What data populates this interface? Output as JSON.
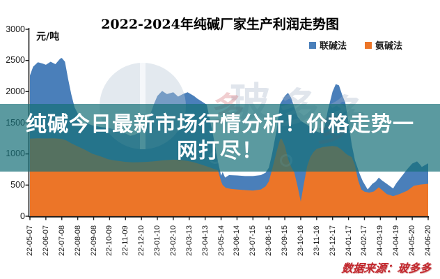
{
  "chart_data": {
    "type": "area",
    "title": "2022-2024年纯碱厂家生产利润走势图",
    "unit_label": "元/吨",
    "xlabel": "",
    "ylabel": "元/吨",
    "ylim": [
      0,
      3000
    ],
    "y_ticks": [
      0,
      500,
      1000,
      1500,
      2000,
      2500,
      3000
    ],
    "grid": false,
    "legend_position": "top-right",
    "categories": [
      "22-05-07",
      "22-06-07",
      "22-07-08",
      "22-08-08",
      "22-09-08",
      "22-10-09",
      "22-11-09",
      "22-12-10",
      "23-01-10",
      "23-02-10",
      "23-03-13",
      "23-04-13",
      "23-05-14",
      "23-06-14",
      "23-07-15",
      "23-08-15",
      "23-09-15",
      "23-10-16",
      "23-11-16",
      "23-12-17",
      "24-01-17",
      "24-02-17",
      "24-03-19",
      "24-04-19",
      "24-05-20",
      "24-06-20"
    ],
    "legend": [
      {
        "name": "联碱法",
        "color": "#4a7fba"
      },
      {
        "name": "氨碱法",
        "color": "#ec7528"
      }
    ],
    "series": [
      {
        "name": "联碱法",
        "color": "#4a7fba",
        "points": [
          [
            0,
            2260
          ],
          [
            0.2,
            2400
          ],
          [
            0.5,
            2470
          ],
          [
            0.8,
            2450
          ],
          [
            1.0,
            2430
          ],
          [
            1.3,
            2480
          ],
          [
            1.6,
            2440
          ],
          [
            1.9,
            2530
          ],
          [
            2.0,
            2540
          ],
          [
            2.2,
            2480
          ],
          [
            2.4,
            2200
          ],
          [
            2.6,
            1950
          ],
          [
            2.8,
            1750
          ],
          [
            3.0,
            1650
          ],
          [
            3.3,
            1420
          ],
          [
            3.5,
            1500
          ],
          [
            3.9,
            1460
          ],
          [
            4.5,
            1430
          ],
          [
            4.9,
            1420
          ],
          [
            5.6,
            1370
          ],
          [
            6.0,
            1330
          ],
          [
            6.3,
            1290
          ],
          [
            6.6,
            1310
          ],
          [
            6.9,
            1350
          ],
          [
            7.3,
            1460
          ],
          [
            7.5,
            1600
          ],
          [
            7.8,
            1810
          ],
          [
            8.0,
            1930
          ],
          [
            8.3,
            2010
          ],
          [
            8.6,
            1960
          ],
          [
            9.0,
            1990
          ],
          [
            9.3,
            1920
          ],
          [
            9.6,
            1960
          ],
          [
            9.9,
            1990
          ],
          [
            10.3,
            1930
          ],
          [
            10.5,
            1890
          ],
          [
            10.8,
            1840
          ],
          [
            11.1,
            1790
          ],
          [
            11.5,
            1300
          ],
          [
            11.8,
            880
          ],
          [
            12.0,
            650
          ],
          [
            12.1,
            710
          ],
          [
            12.25,
            620
          ],
          [
            12.5,
            660
          ],
          [
            13.0,
            655
          ],
          [
            13.5,
            645
          ],
          [
            14.0,
            645
          ],
          [
            14.5,
            660
          ],
          [
            14.8,
            700
          ],
          [
            15.0,
            780
          ],
          [
            15.2,
            1000
          ],
          [
            15.5,
            1400
          ],
          [
            15.7,
            1800
          ],
          [
            16.0,
            1930
          ],
          [
            16.2,
            1980
          ],
          [
            16.4,
            1900
          ],
          [
            16.6,
            1750
          ],
          [
            16.8,
            1600
          ],
          [
            17.0,
            1530
          ],
          [
            17.4,
            1470
          ],
          [
            17.8,
            1390
          ],
          [
            18.0,
            1360
          ],
          [
            18.2,
            1340
          ],
          [
            18.5,
            1420
          ],
          [
            18.7,
            1700
          ],
          [
            19.0,
            2000
          ],
          [
            19.2,
            2120
          ],
          [
            19.4,
            2100
          ],
          [
            19.6,
            1950
          ],
          [
            19.8,
            1820
          ],
          [
            20.0,
            1500
          ],
          [
            20.2,
            1150
          ],
          [
            20.4,
            900
          ],
          [
            20.7,
            680
          ],
          [
            20.9,
            560
          ],
          [
            21.2,
            430
          ],
          [
            21.5,
            520
          ],
          [
            21.7,
            555
          ],
          [
            21.9,
            620
          ],
          [
            22.1,
            575
          ],
          [
            22.4,
            520
          ],
          [
            22.8,
            445
          ],
          [
            23.0,
            530
          ],
          [
            23.4,
            660
          ],
          [
            23.7,
            760
          ],
          [
            24.0,
            845
          ],
          [
            24.3,
            880
          ],
          [
            24.5,
            825
          ],
          [
            24.6,
            790
          ],
          [
            24.8,
            820
          ],
          [
            25,
            850
          ]
        ]
      },
      {
        "name": "氨碱法",
        "color": "#ec7528",
        "points": [
          [
            0,
            1245
          ],
          [
            0.5,
            1250
          ],
          [
            1.0,
            1248
          ],
          [
            1.5,
            1252
          ],
          [
            2.0,
            1240
          ],
          [
            2.3,
            1215
          ],
          [
            2.6,
            1170
          ],
          [
            3.0,
            1120
          ],
          [
            3.5,
            1060
          ],
          [
            3.9,
            1005
          ],
          [
            4.5,
            955
          ],
          [
            4.9,
            915
          ],
          [
            5.3,
            895
          ],
          [
            5.6,
            885
          ],
          [
            6.0,
            872
          ],
          [
            6.5,
            865
          ],
          [
            6.9,
            868
          ],
          [
            7.3,
            872
          ],
          [
            7.8,
            882
          ],
          [
            8.3,
            895
          ],
          [
            9.0,
            908
          ],
          [
            9.5,
            900
          ],
          [
            9.9,
            888
          ],
          [
            10.3,
            865
          ],
          [
            10.8,
            825
          ],
          [
            11.1,
            800
          ],
          [
            11.5,
            765
          ],
          [
            11.8,
            738
          ],
          [
            12.0,
            560
          ],
          [
            12.1,
            500
          ],
          [
            12.3,
            455
          ],
          [
            12.6,
            440
          ],
          [
            13.0,
            430
          ],
          [
            13.5,
            420
          ],
          [
            14.0,
            412
          ],
          [
            14.5,
            430
          ],
          [
            14.8,
            480
          ],
          [
            15.0,
            560
          ],
          [
            15.2,
            750
          ],
          [
            15.5,
            1050
          ],
          [
            15.7,
            1230
          ],
          [
            15.8,
            1245
          ],
          [
            16.0,
            1130
          ],
          [
            16.2,
            920
          ],
          [
            16.4,
            790
          ],
          [
            16.6,
            700
          ],
          [
            16.8,
            480
          ],
          [
            17.0,
            235
          ],
          [
            17.2,
            520
          ],
          [
            17.4,
            800
          ],
          [
            17.6,
            950
          ],
          [
            17.8,
            1030
          ],
          [
            18.0,
            1080
          ],
          [
            18.4,
            1110
          ],
          [
            19.0,
            1128
          ],
          [
            19.3,
            1115
          ],
          [
            19.6,
            1060
          ],
          [
            19.8,
            1010
          ],
          [
            20.0,
            975
          ],
          [
            20.2,
            950
          ],
          [
            20.4,
            820
          ],
          [
            20.6,
            580
          ],
          [
            20.8,
            430
          ],
          [
            21.0,
            395
          ],
          [
            21.3,
            378
          ],
          [
            21.6,
            398
          ],
          [
            21.9,
            465
          ],
          [
            22.4,
            356
          ],
          [
            22.8,
            322
          ],
          [
            23.2,
            355
          ],
          [
            23.7,
            412
          ],
          [
            24.1,
            488
          ],
          [
            24.5,
            508
          ],
          [
            25,
            520
          ]
        ]
      }
    ]
  },
  "overlay": {
    "line1": "纯碱今日最新市场行情分析！价格走势一",
    "line2": "网打尽！",
    "background": "rgba(22,111,119,0.70)",
    "text_color": "#ffffff"
  },
  "source_note": "数据来源：玻多多",
  "watermark": {
    "text": "玻多多",
    "glyphs": [
      "玻",
      "多",
      "多"
    ],
    "red_glyphs": [
      "多",
      "多"
    ]
  }
}
